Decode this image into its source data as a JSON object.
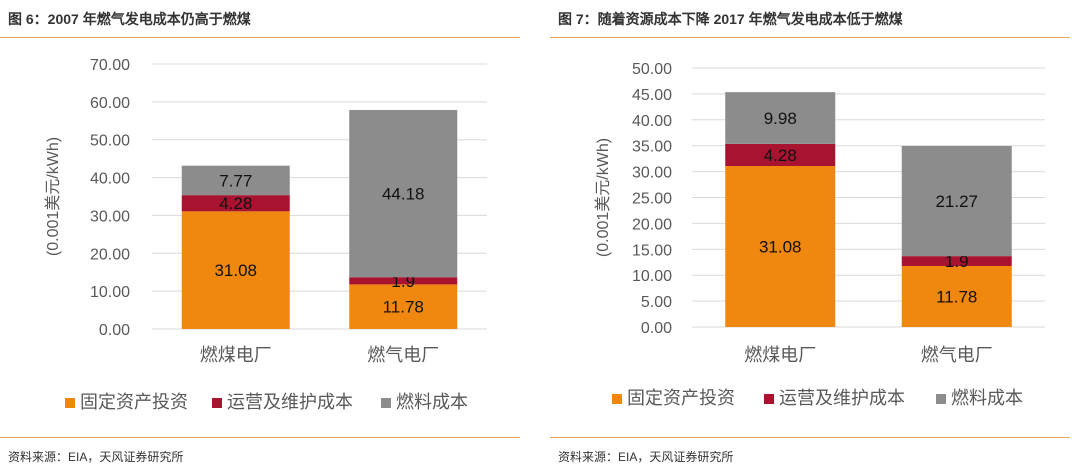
{
  "charts": [
    {
      "title": "图 6：2007 年燃气发电成本仍高于燃煤",
      "source": "资料来源：EIA，天风证券研究所"
    },
    {
      "title": "图 7：随着资源成本下降 2017 年燃气发电成本低于燃煤",
      "source": "资料来源：EIA，天风证券研究所"
    }
  ],
  "chart_data": [
    {
      "type": "bar",
      "stacked": true,
      "title": "图 6：2007 年燃气发电成本仍高于燃煤",
      "ylabel": "(0.001美元/kWh)",
      "ylim": [
        0,
        70
      ],
      "yticks": [
        "0.00",
        "10.00",
        "20.00",
        "30.00",
        "40.00",
        "50.00",
        "60.00",
        "70.00"
      ],
      "categories": [
        "燃煤电厂",
        "燃气电厂"
      ],
      "series": [
        {
          "name": "固定资产投资",
          "color": "#f0870e",
          "values": [
            31.08,
            11.78
          ]
        },
        {
          "name": "运营及维护成本",
          "color": "#a8132f",
          "values": [
            4.28,
            1.9
          ]
        },
        {
          "name": "燃料成本",
          "color": "#8c8c8c",
          "values": [
            7.77,
            44.18
          ]
        }
      ],
      "data_labels": [
        [
          "31.08",
          "11.78"
        ],
        [
          "4.28",
          "1.9"
        ],
        [
          "7.77",
          "44.18"
        ]
      ],
      "legend": "bottom",
      "grid": true
    },
    {
      "type": "bar",
      "stacked": true,
      "title": "图 7：随着资源成本下降 2017 年燃气发电成本低于燃煤",
      "ylabel": "(0.001美元/kWh)",
      "ylim": [
        0,
        50
      ],
      "yticks": [
        "0.00",
        "5.00",
        "10.00",
        "15.00",
        "20.00",
        "25.00",
        "30.00",
        "35.00",
        "40.00",
        "45.00",
        "50.00"
      ],
      "categories": [
        "燃煤电厂",
        "燃气电厂"
      ],
      "series": [
        {
          "name": "固定资产投资",
          "color": "#f0870e",
          "values": [
            31.08,
            11.78
          ]
        },
        {
          "name": "运营及维护成本",
          "color": "#a8132f",
          "values": [
            4.28,
            1.9
          ]
        },
        {
          "name": "燃料成本",
          "color": "#8c8c8c",
          "values": [
            9.98,
            21.27
          ]
        }
      ],
      "data_labels": [
        [
          "31.08",
          "11.78"
        ],
        [
          "4.28",
          "1.9"
        ],
        [
          "9.98",
          "21.27"
        ]
      ],
      "legend": "bottom",
      "grid": true
    }
  ]
}
